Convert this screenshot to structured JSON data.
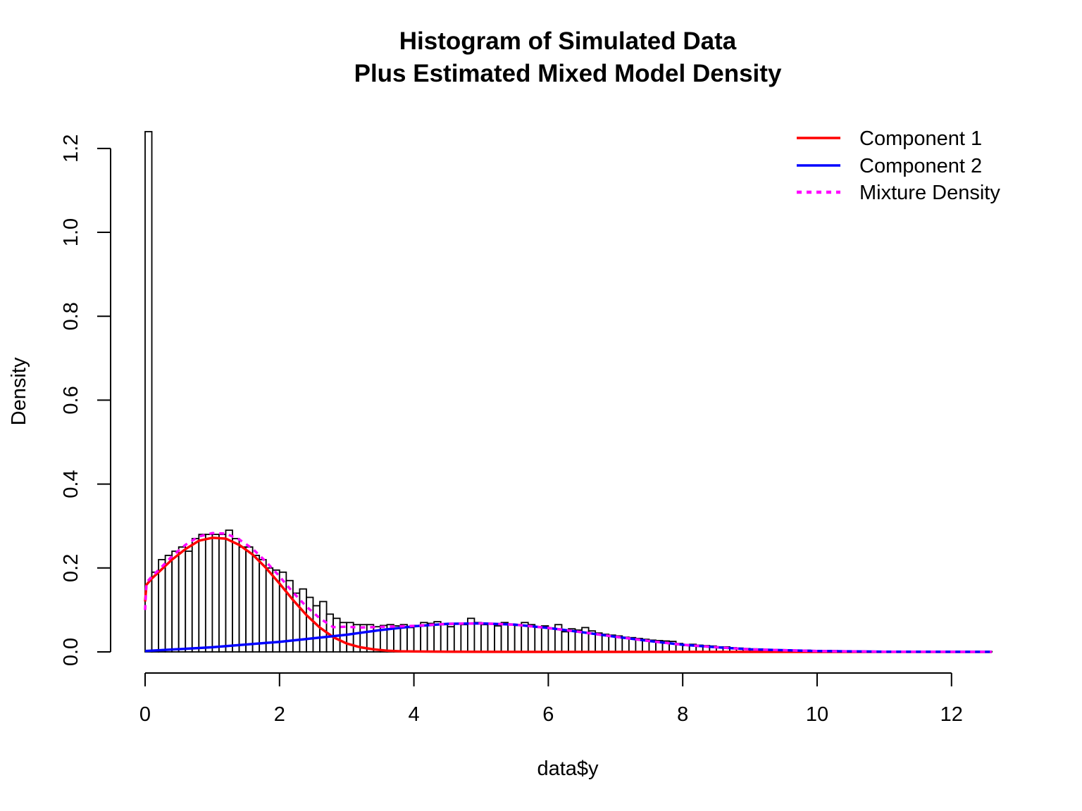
{
  "chart_data": {
    "type": "bar",
    "title": "Histogram of Simulated Data",
    "subtitle": "Plus Estimated Mixed Model Density",
    "xlabel": "data$y",
    "ylabel": "Density",
    "xlim": [
      0,
      12.6
    ],
    "ylim": [
      0,
      1.24
    ],
    "x_ticks": [
      0,
      2,
      4,
      6,
      8,
      10,
      12
    ],
    "x_tick_labels": [
      "0",
      "2",
      "4",
      "6",
      "8",
      "10",
      "12"
    ],
    "y_ticks": [
      0.0,
      0.2,
      0.4,
      0.6,
      0.8,
      1.0,
      1.2
    ],
    "y_tick_labels": [
      "0.0",
      "0.2",
      "0.4",
      "0.6",
      "0.8",
      "1.0",
      "1.2"
    ],
    "histogram": {
      "bin_width": 0.1,
      "bin_start": 0,
      "density": [
        1.24,
        0.19,
        0.22,
        0.23,
        0.24,
        0.25,
        0.24,
        0.27,
        0.28,
        0.28,
        0.28,
        0.28,
        0.29,
        0.27,
        0.25,
        0.25,
        0.23,
        0.22,
        0.2,
        0.195,
        0.19,
        0.17,
        0.14,
        0.15,
        0.13,
        0.11,
        0.12,
        0.09,
        0.08,
        0.07,
        0.07,
        0.065,
        0.065,
        0.065,
        0.06,
        0.063,
        0.065,
        0.062,
        0.065,
        0.058,
        0.063,
        0.07,
        0.068,
        0.072,
        0.065,
        0.06,
        0.067,
        0.065,
        0.08,
        0.07,
        0.065,
        0.068,
        0.062,
        0.07,
        0.066,
        0.063,
        0.07,
        0.065,
        0.06,
        0.062,
        0.055,
        0.065,
        0.048,
        0.055,
        0.052,
        0.058,
        0.05,
        0.045,
        0.042,
        0.04,
        0.038,
        0.035,
        0.034,
        0.032,
        0.03,
        0.028,
        0.027,
        0.026,
        0.025,
        0.02,
        0.015,
        0.018,
        0.016,
        0.015,
        0.014,
        0.012,
        0.012,
        0.01,
        0.009,
        0.008,
        0.007,
        0.007,
        0.006,
        0.006,
        0.005,
        0.005,
        0.004,
        0.004,
        0.004,
        0.003,
        0.003,
        0.003,
        0.003,
        0.002,
        0.002,
        0.002,
        0.002,
        0.002,
        0.001,
        0.001,
        0.001,
        0.001,
        0.001,
        0.001,
        0.001,
        0.001,
        0.001,
        0.001,
        0.001,
        0.001,
        0.001,
        0.001,
        0.001,
        0.001,
        0.001,
        0.001
      ]
    },
    "series": [
      {
        "name": "Component 1",
        "color": "#ff0000",
        "style": "solid",
        "x": [
          0,
          0.02,
          0.1,
          0.2,
          0.4,
          0.6,
          0.8,
          1.0,
          1.2,
          1.4,
          1.6,
          1.8,
          2.0,
          2.2,
          2.4,
          2.6,
          2.8,
          3.0,
          3.2,
          3.4,
          3.6,
          3.8,
          4.0,
          4.5,
          5.0,
          6.0,
          8.0,
          10.0,
          12.6
        ],
        "y": [
          0.12,
          0.16,
          0.175,
          0.19,
          0.22,
          0.245,
          0.265,
          0.272,
          0.27,
          0.255,
          0.232,
          0.2,
          0.163,
          0.124,
          0.088,
          0.058,
          0.035,
          0.02,
          0.011,
          0.006,
          0.003,
          0.0015,
          0.001,
          0.0005,
          0.0002,
          0,
          0,
          0,
          0
        ]
      },
      {
        "name": "Component 2",
        "color": "#0000ff",
        "style": "solid",
        "x": [
          0,
          1,
          2,
          3,
          3.5,
          4,
          4.5,
          5,
          5.5,
          6,
          6.5,
          7,
          7.5,
          8,
          8.5,
          9,
          10,
          11,
          12.6
        ],
        "y": [
          0.002,
          0.011,
          0.024,
          0.041,
          0.052,
          0.061,
          0.067,
          0.068,
          0.065,
          0.057,
          0.047,
          0.036,
          0.026,
          0.017,
          0.011,
          0.006,
          0.002,
          0.0005,
          0.0001
        ]
      },
      {
        "name": "Mixture Density",
        "color": "#ff00ff",
        "style": "dotted",
        "x": [
          0,
          0.02,
          0.1,
          0.2,
          0.4,
          0.6,
          0.8,
          1.0,
          1.2,
          1.4,
          1.6,
          1.8,
          2.0,
          2.2,
          2.4,
          2.6,
          2.8,
          3.0,
          3.2,
          3.4,
          3.6,
          3.8,
          4.0,
          4.5,
          5.0,
          5.5,
          6.0,
          6.5,
          7.0,
          7.5,
          8.0,
          8.5,
          9.0,
          10.0,
          11.0,
          12.6
        ],
        "y": [
          0.1,
          0.165,
          0.18,
          0.195,
          0.228,
          0.255,
          0.275,
          0.283,
          0.282,
          0.268,
          0.246,
          0.215,
          0.18,
          0.142,
          0.108,
          0.08,
          0.059,
          0.06,
          0.058,
          0.059,
          0.06,
          0.061,
          0.062,
          0.067,
          0.068,
          0.065,
          0.057,
          0.047,
          0.036,
          0.026,
          0.017,
          0.011,
          0.006,
          0.002,
          0.0005,
          0.0001
        ]
      }
    ],
    "legend": {
      "position": "top-right",
      "entries": [
        "Component 1",
        "Component 2",
        "Mixture Density"
      ]
    },
    "grid": false
  }
}
